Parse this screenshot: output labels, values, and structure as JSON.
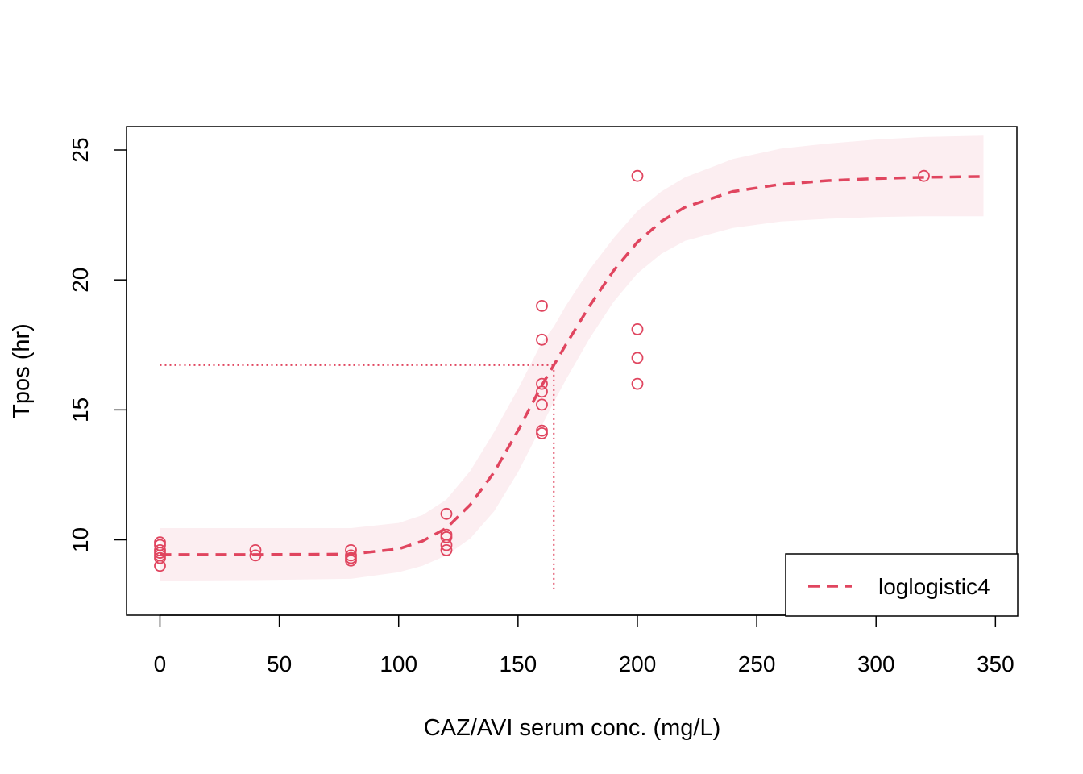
{
  "chart_data": {
    "type": "scatter",
    "title": "",
    "xlabel": "CAZ/AVI serum conc. (mg/L)",
    "ylabel": "Tpos (hr)",
    "xlim": [
      -14,
      359
    ],
    "ylim": [
      7.1,
      25.9
    ],
    "xticks": [
      0,
      50,
      100,
      150,
      200,
      250,
      300,
      350
    ],
    "xtick_labels": [
      "0",
      "50",
      "100",
      "150",
      "200",
      "250",
      "300",
      "350"
    ],
    "yticks": [
      10,
      15,
      20,
      25
    ],
    "ytick_labels": [
      "10",
      "15",
      "20",
      "25"
    ],
    "grid": false,
    "color": "#E0455F",
    "band_color": "#FCEEF1",
    "points": [
      {
        "x": 0,
        "y": 9.9
      },
      {
        "x": 0,
        "y": 9.8
      },
      {
        "x": 0,
        "y": 9.6
      },
      {
        "x": 0,
        "y": 9.5
      },
      {
        "x": 0,
        "y": 9.4
      },
      {
        "x": 0,
        "y": 9.3
      },
      {
        "x": 0,
        "y": 9.0
      },
      {
        "x": 40,
        "y": 9.6
      },
      {
        "x": 40,
        "y": 9.4
      },
      {
        "x": 80,
        "y": 9.6
      },
      {
        "x": 80,
        "y": 9.4
      },
      {
        "x": 80,
        "y": 9.3
      },
      {
        "x": 80,
        "y": 9.2
      },
      {
        "x": 120,
        "y": 11.0
      },
      {
        "x": 120,
        "y": 10.2
      },
      {
        "x": 120,
        "y": 10.1
      },
      {
        "x": 120,
        "y": 9.8
      },
      {
        "x": 120,
        "y": 9.6
      },
      {
        "x": 160,
        "y": 19.0
      },
      {
        "x": 160,
        "y": 17.7
      },
      {
        "x": 160,
        "y": 16.0
      },
      {
        "x": 160,
        "y": 15.7
      },
      {
        "x": 160,
        "y": 15.2
      },
      {
        "x": 160,
        "y": 14.2
      },
      {
        "x": 160,
        "y": 14.1
      },
      {
        "x": 200,
        "y": 24.0
      },
      {
        "x": 200,
        "y": 18.1
      },
      {
        "x": 200,
        "y": 17.0
      },
      {
        "x": 200,
        "y": 16.0
      },
      {
        "x": 320,
        "y": 24.0
      }
    ],
    "fit": {
      "x": [
        0,
        40,
        80,
        100,
        110,
        120,
        130,
        140,
        150,
        160,
        165,
        170,
        180,
        190,
        200,
        210,
        220,
        240,
        260,
        280,
        300,
        320,
        345
      ],
      "y": [
        9.43,
        9.43,
        9.45,
        9.65,
        9.95,
        10.45,
        11.35,
        12.6,
        14.2,
        15.95,
        16.72,
        17.5,
        19.0,
        20.35,
        21.45,
        22.25,
        22.8,
        23.4,
        23.68,
        23.82,
        23.9,
        23.95,
        23.98
      ]
    },
    "band": {
      "x": [
        0,
        40,
        80,
        100,
        110,
        120,
        130,
        140,
        150,
        160,
        165,
        170,
        180,
        190,
        200,
        210,
        220,
        240,
        260,
        280,
        300,
        320,
        345
      ],
      "lower": [
        8.43,
        8.45,
        8.5,
        8.75,
        9.0,
        9.4,
        10.05,
        11.1,
        12.6,
        14.4,
        15.3,
        16.15,
        17.75,
        19.15,
        20.25,
        21.0,
        21.5,
        22.0,
        22.25,
        22.35,
        22.42,
        22.45,
        22.45
      ],
      "upper": [
        10.45,
        10.45,
        10.45,
        10.65,
        10.95,
        11.55,
        12.65,
        14.15,
        15.8,
        17.6,
        18.2,
        19.0,
        20.4,
        21.6,
        22.65,
        23.4,
        23.95,
        24.65,
        25.05,
        25.25,
        25.4,
        25.5,
        25.55
      ]
    },
    "ed50": {
      "x": 165,
      "y": 16.72
    },
    "legend": {
      "position": "bottom-right",
      "entries": [
        {
          "label": "loglogistic4",
          "style": "dashed"
        }
      ]
    }
  }
}
